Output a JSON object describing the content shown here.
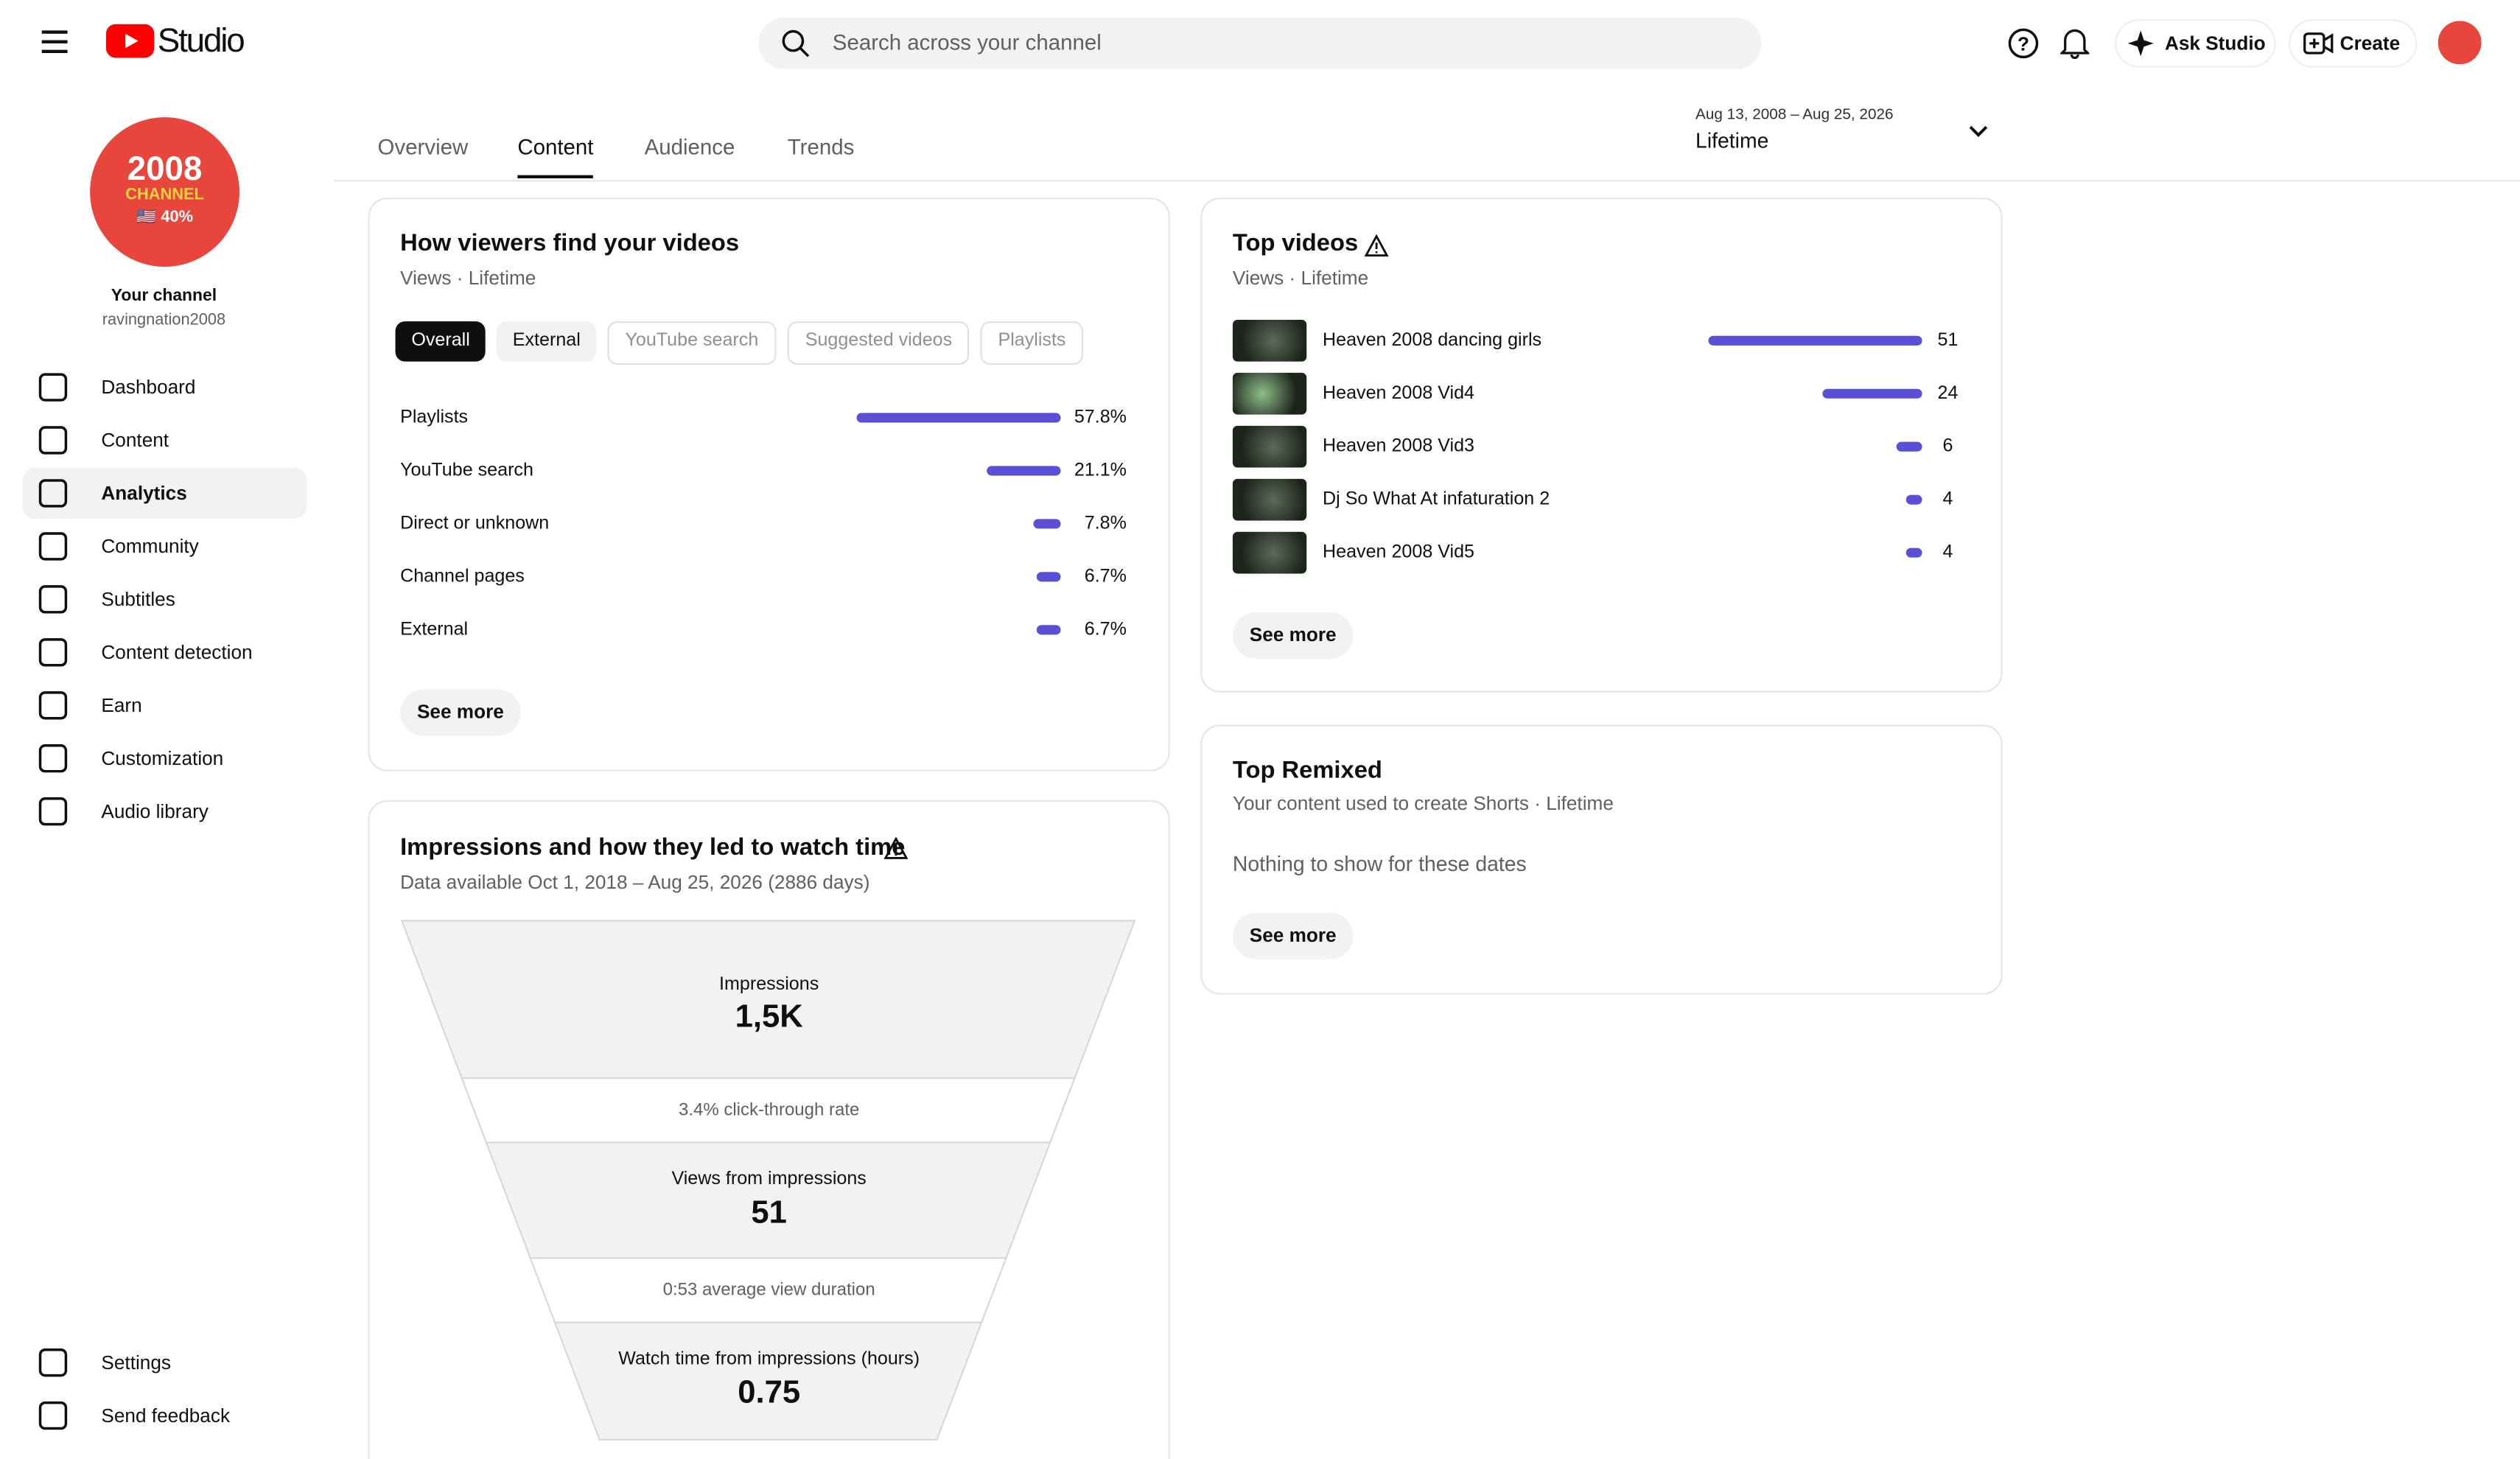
{
  "header": {
    "logo": "Studio",
    "search_placeholder": "Search across your channel",
    "ask": "Ask Studio",
    "create": "Create"
  },
  "sidebar": {
    "avatar_lines": [
      "2008",
      "CHANNEL",
      "🇺🇸 40%"
    ],
    "channel_label": "Your channel",
    "channel_handle": "ravingnation2008",
    "nav": [
      "Dashboard",
      "Content",
      "Analytics",
      "Community",
      "Subtitles",
      "Content detection",
      "Earn",
      "Customization",
      "Audio library"
    ],
    "active_nav": 2,
    "bottom": [
      "Settings",
      "Send feedback"
    ]
  },
  "tabs": {
    "items": [
      "Overview",
      "Content",
      "Audience",
      "Trends"
    ],
    "active": 1
  },
  "date_range": {
    "range": "Aug 13, 2008 – Aug 25, 2026",
    "label": "Lifetime"
  },
  "traffic": {
    "title": "How viewers find your videos",
    "subtitle": "Views · Lifetime",
    "filters": [
      "Overall",
      "External",
      "YouTube search",
      "Suggested videos",
      "Playlists"
    ],
    "active_filter": 0,
    "sources": [
      {
        "name": "Playlists",
        "value": 57.8,
        "label": "57.8%"
      },
      {
        "name": "YouTube search",
        "value": 21.1,
        "label": "21.1%"
      },
      {
        "name": "Direct or unknown",
        "value": 7.8,
        "label": "7.8%"
      },
      {
        "name": "Channel pages",
        "value": 6.7,
        "label": "6.7%"
      },
      {
        "name": "External",
        "value": 6.7,
        "label": "6.7%"
      }
    ],
    "see_more": "See more"
  },
  "top_videos": {
    "title": "Top videos",
    "subtitle": "Views · Lifetime",
    "videos": [
      {
        "title": "Heaven 2008 dancing girls",
        "views": 51
      },
      {
        "title": "Heaven 2008 Vid4",
        "views": 24
      },
      {
        "title": "Heaven 2008 Vid3",
        "views": 6
      },
      {
        "title": "Dj So What At infaturation 2",
        "views": 4
      },
      {
        "title": "Heaven 2008 Vid5",
        "views": 4
      }
    ],
    "see_more": "See more"
  },
  "top_remixed": {
    "title": "Top Remixed",
    "subtitle": "Your content used to create Shorts · Lifetime",
    "empty": "Nothing to show for these dates",
    "see_more": "See more"
  },
  "impressions": {
    "title": "Impressions and how they led to watch time",
    "subtitle": "Data available Oct 1, 2018 – Aug 25, 2026 (2886 days)",
    "stages": [
      {
        "label": "Impressions",
        "value": "1,5K"
      },
      {
        "label": "Views from impressions",
        "value": "51"
      },
      {
        "label": "Watch time from impressions (hours)",
        "value": "0.75"
      }
    ],
    "rates": [
      "3.4% click-through rate",
      "0:53 average view duration"
    ]
  }
}
